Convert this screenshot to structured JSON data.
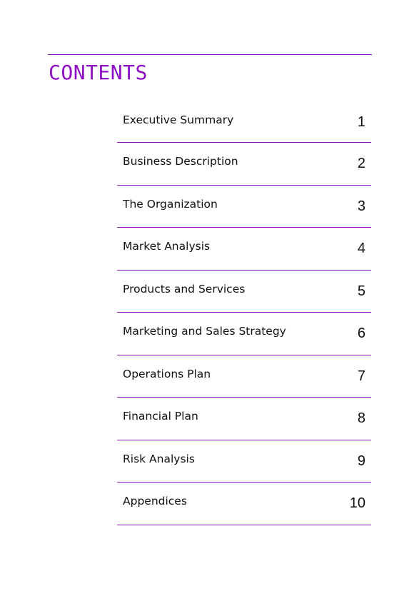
{
  "title": "CONTENTS",
  "toc": [
    {
      "label": "Executive Summary",
      "page": "1"
    },
    {
      "label": "Business Description",
      "page": "2"
    },
    {
      "label": "The Organization",
      "page": "3"
    },
    {
      "label": "Market Analysis",
      "page": "4"
    },
    {
      "label": "Products and Services",
      "page": "5"
    },
    {
      "label": "Marketing and Sales Strategy",
      "page": "6"
    },
    {
      "label": "Operations Plan",
      "page": "7"
    },
    {
      "label": "Financial Plan",
      "page": "8"
    },
    {
      "label": "Risk Analysis",
      "page": "9"
    },
    {
      "label": "Appendices",
      "page": "10"
    }
  ],
  "colors": {
    "accent": "#8d0fc4",
    "rule": "#8a0fb5",
    "text": "#111111"
  }
}
